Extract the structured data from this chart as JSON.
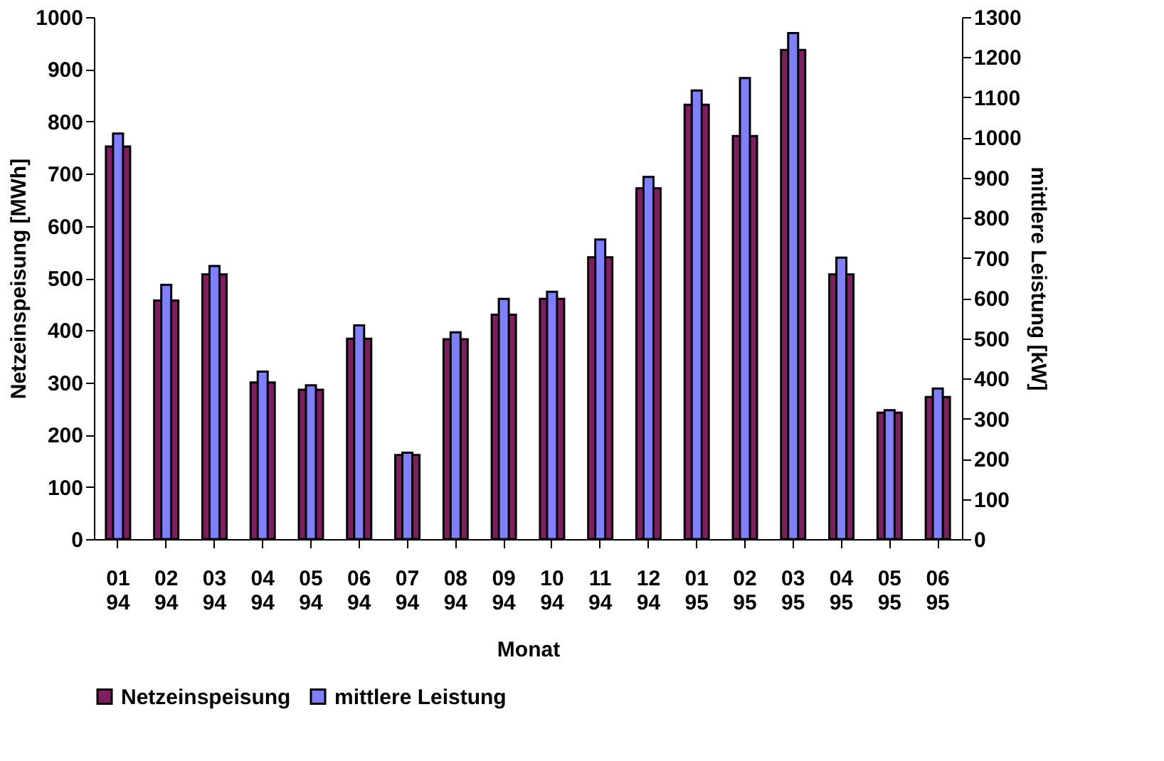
{
  "chart_data": {
    "type": "bar",
    "xlabel": "Monat",
    "ylabel": "Netzeinspeisung [MWh]",
    "y2label": "mittlere Leistung [kW]",
    "categories": [
      "01 94",
      "02 94",
      "03 94",
      "04 94",
      "05 94",
      "06 94",
      "07 94",
      "08 94",
      "09 94",
      "10 94",
      "11 94",
      "12 94",
      "01 95",
      "02 95",
      "03 95",
      "04 95",
      "05 95",
      "06 95"
    ],
    "series": [
      {
        "name": "Netzeinspeisung",
        "color": "#7f1f5f",
        "values": [
          752,
          457,
          507,
          300,
          286,
          384,
          161,
          383,
          430,
          460,
          540,
          672,
          832,
          772,
          937,
          507,
          242,
          272
        ]
      },
      {
        "name": "mittlere Leistung",
        "color": "#8080ff",
        "axis": "y2",
        "values": [
          1010,
          633,
          680,
          417,
          383,
          532,
          215,
          515,
          598,
          616,
          746,
          902,
          1117,
          1148,
          1260,
          701,
          321,
          375
        ]
      }
    ],
    "ylim": [
      0,
      1000
    ],
    "yticks": [
      0,
      100,
      200,
      300,
      400,
      500,
      600,
      700,
      800,
      900,
      1000
    ],
    "y2lim": [
      0,
      1300
    ],
    "y2ticks": [
      0,
      100,
      200,
      300,
      400,
      500,
      600,
      700,
      800,
      900,
      1000,
      1100,
      1200,
      1300
    ],
    "grid": false,
    "legend": "bottom"
  }
}
